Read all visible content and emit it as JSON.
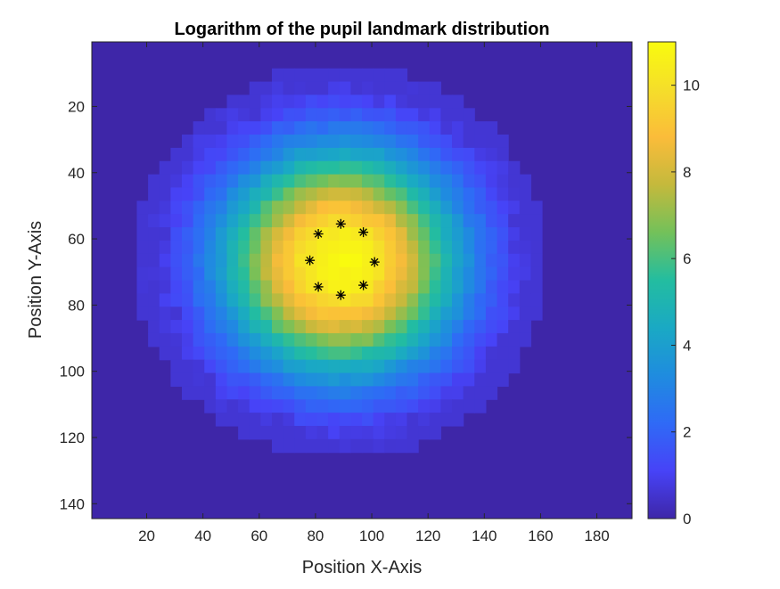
{
  "chart_data": {
    "type": "heatmap",
    "title": "Logarithm of the pupil landmark distribution",
    "xlabel": "Position X-Axis",
    "ylabel": "Position Y-Axis",
    "xlim": [
      0.5,
      192.5
    ],
    "ylim": [
      0.5,
      144.5
    ],
    "y_direction": "reverse",
    "x_ticks": [
      20,
      40,
      60,
      80,
      100,
      120,
      140,
      160,
      180
    ],
    "y_ticks": [
      20,
      40,
      60,
      80,
      100,
      120,
      140
    ],
    "colorbar": {
      "range": [
        0,
        11
      ],
      "ticks": [
        0,
        2,
        4,
        6,
        8,
        10
      ],
      "colormap": "parula",
      "colors": [
        "#3e26a8",
        "#4743f7",
        "#2f6af6",
        "#1f8cdf",
        "#1aa9c4",
        "#23bda0",
        "#73c15a",
        "#c4b93c",
        "#fbbc3a",
        "#f5de2a",
        "#f9fb0e"
      ]
    },
    "background_value": 0,
    "distribution": {
      "peak_value": 10.9,
      "center": [
        89,
        67
      ],
      "radius_x": 68,
      "radius_y": 55
    },
    "markers": {
      "symbol": "*",
      "color": "#000000",
      "points": [
        {
          "x": 89,
          "y": 55.5
        },
        {
          "x": 97,
          "y": 58
        },
        {
          "x": 101,
          "y": 67
        },
        {
          "x": 97,
          "y": 74
        },
        {
          "x": 89,
          "y": 77
        },
        {
          "x": 81,
          "y": 74.5
        },
        {
          "x": 78,
          "y": 66.5
        },
        {
          "x": 81,
          "y": 58.5
        }
      ]
    }
  }
}
